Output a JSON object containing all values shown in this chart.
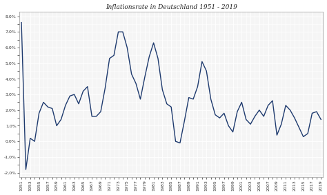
{
  "title": "Inflationsrate in Deutschland 1951 - 2019",
  "years": [
    1951,
    1952,
    1953,
    1954,
    1955,
    1956,
    1957,
    1958,
    1959,
    1960,
    1961,
    1962,
    1963,
    1964,
    1965,
    1966,
    1967,
    1968,
    1969,
    1970,
    1971,
    1972,
    1973,
    1974,
    1975,
    1976,
    1977,
    1978,
    1979,
    1980,
    1981,
    1982,
    1983,
    1984,
    1985,
    1986,
    1987,
    1988,
    1989,
    1990,
    1991,
    1992,
    1993,
    1994,
    1995,
    1996,
    1997,
    1998,
    1999,
    2000,
    2001,
    2002,
    2003,
    2004,
    2005,
    2006,
    2007,
    2008,
    2009,
    2010,
    2011,
    2012,
    2013,
    2014,
    2015,
    2016,
    2017,
    2018,
    2019
  ],
  "values": [
    7.6,
    -1.8,
    0.2,
    0.0,
    1.8,
    2.5,
    2.2,
    2.1,
    1.0,
    1.4,
    2.3,
    2.9,
    3.0,
    2.4,
    3.2,
    3.5,
    1.6,
    1.6,
    1.9,
    3.4,
    5.3,
    5.5,
    7.0,
    7.0,
    6.0,
    4.3,
    3.7,
    2.7,
    4.1,
    5.4,
    6.3,
    5.3,
    3.3,
    2.4,
    2.2,
    0.0,
    -0.1,
    1.3,
    2.8,
    2.7,
    3.5,
    5.1,
    4.5,
    2.7,
    1.7,
    1.5,
    1.8,
    1.0,
    0.6,
    1.9,
    2.5,
    1.4,
    1.1,
    1.6,
    2.0,
    1.6,
    2.3,
    2.6,
    0.4,
    1.1,
    2.3,
    2.0,
    1.5,
    0.9,
    0.3,
    0.5,
    1.8,
    1.9,
    1.4
  ],
  "line_color": "#1e3a6e",
  "line_width": 1.0,
  "bg_color": "#ffffff",
  "plot_bg_color": "#f5f5f5",
  "grid_color": "#ffffff",
  "ytick_values": [
    -2.0,
    -1.0,
    0.0,
    1.0,
    2.0,
    3.0,
    4.0,
    5.0,
    6.0,
    7.0,
    8.0
  ],
  "ylim": [
    -2.3,
    8.3
  ],
  "title_fontsize": 6.5,
  "tick_fontsize": 4.5
}
